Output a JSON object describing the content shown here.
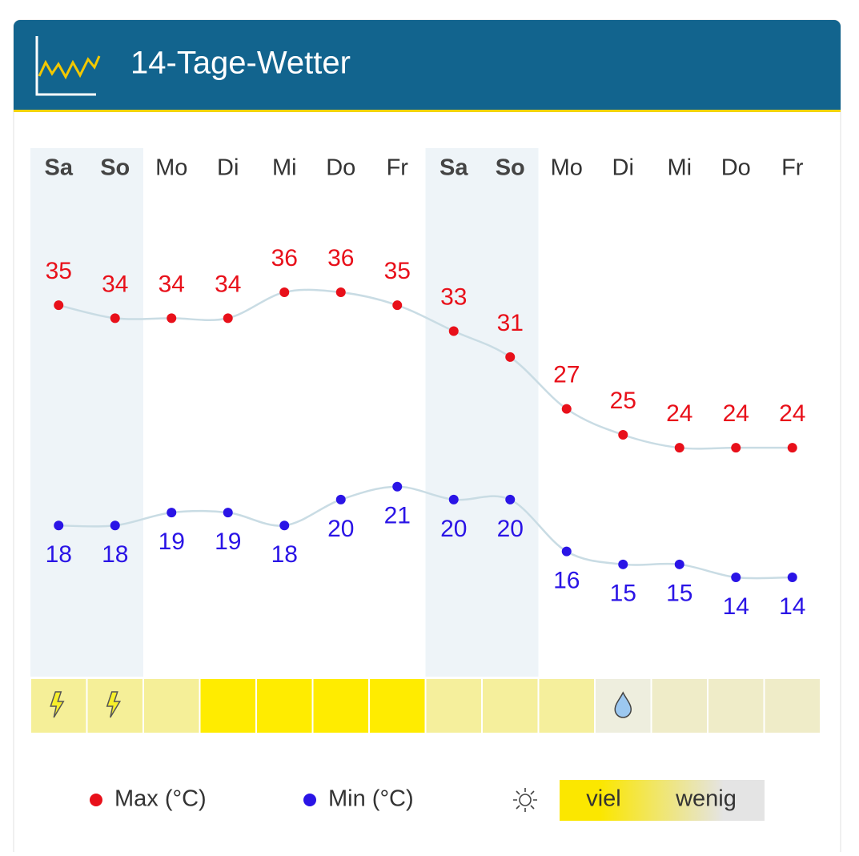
{
  "header": {
    "title": "14-Tage-Wetter"
  },
  "chart_data": {
    "type": "line",
    "categories": [
      "Sa",
      "So",
      "Mo",
      "Di",
      "Mi",
      "Do",
      "Fr",
      "Sa",
      "So",
      "Mo",
      "Di",
      "Mi",
      "Do",
      "Fr"
    ],
    "series": [
      {
        "name": "Max (°C)",
        "color": "#e8101a",
        "values": [
          35,
          34,
          34,
          34,
          36,
          36,
          35,
          33,
          31,
          27,
          25,
          24,
          24,
          24
        ]
      },
      {
        "name": "Min (°C)",
        "color": "#2a14e6",
        "values": [
          18,
          18,
          19,
          19,
          18,
          20,
          21,
          20,
          20,
          16,
          15,
          15,
          14,
          14
        ]
      }
    ],
    "line_color": "#c9dce4",
    "sunshine_colors": [
      "#f5ef98",
      "#f5ef98",
      "#f5ef98",
      "#ffec00",
      "#ffec00",
      "#ffec00",
      "#ffec00",
      "#f5ef9c",
      "#f5ef9c",
      "#f5ef9c",
      "#eeeede",
      "#efecc8",
      "#efecc8",
      "#efecc8"
    ],
    "sunshine_legend": {
      "high": "viel",
      "low": "wenig",
      "high_color": "#fbe700",
      "low_color": "#e4e4e4"
    }
  }
}
